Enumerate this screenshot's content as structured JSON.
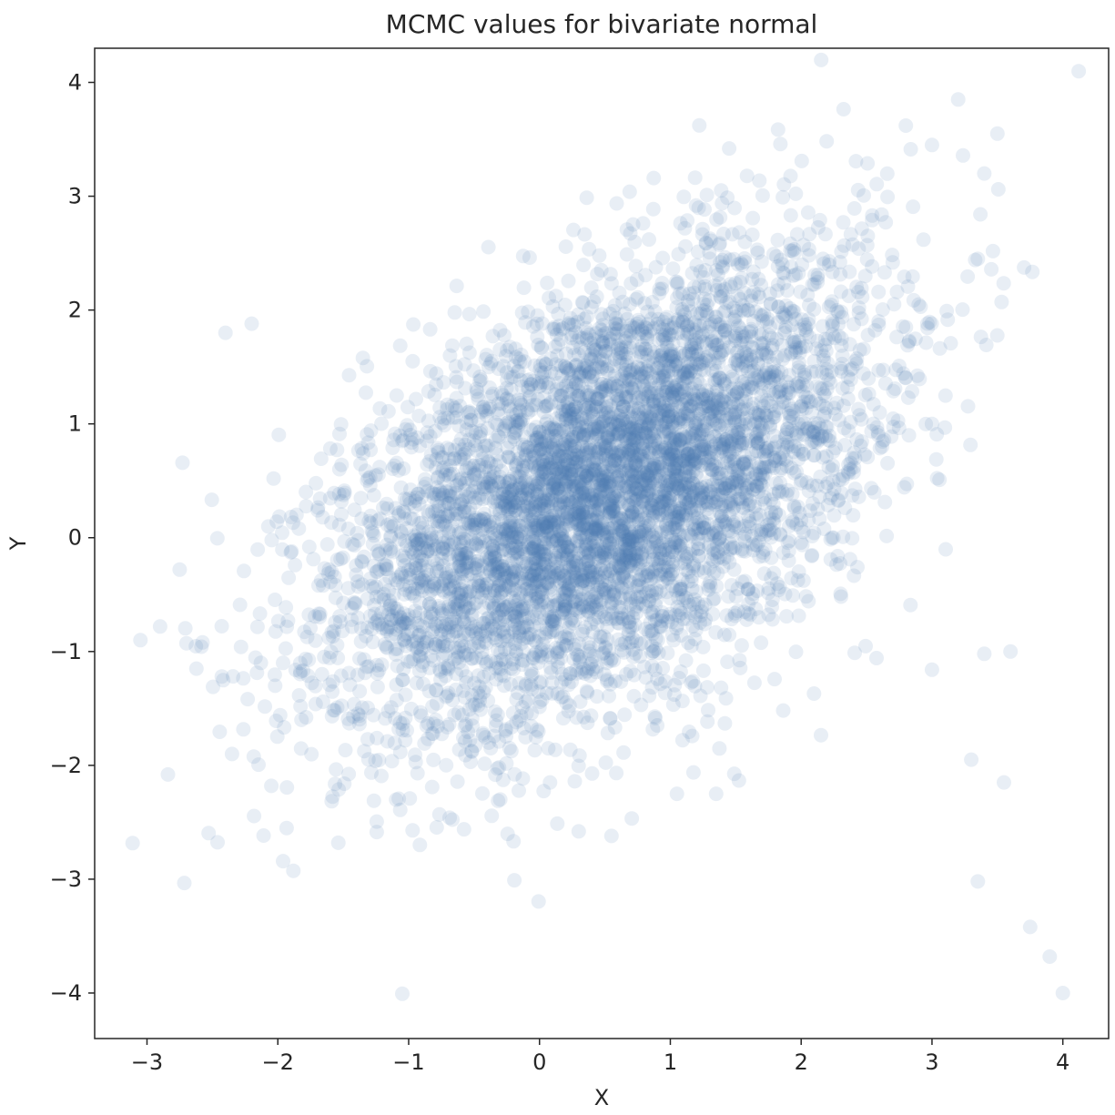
{
  "chart_data": {
    "type": "scatter",
    "title": "MCMC values for bivariate normal",
    "xlabel": "X",
    "ylabel": "Y",
    "xlim": [
      -3.4,
      4.35
    ],
    "ylim": [
      -4.4,
      4.3
    ],
    "x_ticks": [
      -3,
      -2,
      -1,
      0,
      1,
      2,
      3,
      4
    ],
    "y_ticks": [
      -4,
      -3,
      -2,
      -1,
      0,
      1,
      2,
      3,
      4
    ],
    "x_tick_labels": [
      "−3",
      "−2",
      "−1",
      "0",
      "1",
      "2",
      "3",
      "4"
    ],
    "y_tick_labels": [
      "−4",
      "−3",
      "−2",
      "−1",
      "0",
      "1",
      "2",
      "3",
      "4"
    ],
    "grid": false,
    "color": "#4a78b5",
    "point_alpha": 0.13,
    "series": [
      {
        "mean": [
          0.5,
          0.4
        ],
        "std": [
          1.0,
          1.0
        ],
        "correlation": 0.5,
        "n_points": 6000
      }
    ],
    "notable_points": [
      {
        "x": -3.05,
        "y": -0.9
      },
      {
        "x": -2.9,
        "y": -0.78
      },
      {
        "x": -2.75,
        "y": -0.28
      },
      {
        "x": -2.35,
        "y": -1.9
      },
      {
        "x": -2.4,
        "y": 1.8
      },
      {
        "x": -2.2,
        "y": 1.88
      },
      {
        "x": -2.05,
        "y": -2.18
      },
      {
        "x": -1.35,
        "y": 1.58
      },
      {
        "x": -0.3,
        "y": -2.3
      },
      {
        "x": 0.3,
        "y": -2.58
      },
      {
        "x": 0.55,
        "y": -2.62
      },
      {
        "x": 1.05,
        "y": -2.25
      },
      {
        "x": 1.35,
        "y": -2.25
      },
      {
        "x": 1.45,
        "y": 3.42
      },
      {
        "x": 2.8,
        "y": 3.62
      },
      {
        "x": 3.0,
        "y": 3.45
      },
      {
        "x": 3.2,
        "y": 3.85
      },
      {
        "x": 3.5,
        "y": 3.55
      },
      {
        "x": 3.4,
        "y": 3.2
      },
      {
        "x": 3.35,
        "y": 2.45
      },
      {
        "x": 3.0,
        "y": 1.0
      },
      {
        "x": 3.0,
        "y": -1.16
      },
      {
        "x": 3.3,
        "y": -1.95
      },
      {
        "x": 3.55,
        "y": -2.15
      },
      {
        "x": 3.4,
        "y": -1.02
      },
      {
        "x": 3.6,
        "y": -1.0
      },
      {
        "x": 3.35,
        "y": -3.02
      },
      {
        "x": 3.75,
        "y": -3.42
      },
      {
        "x": 3.9,
        "y": -3.68
      },
      {
        "x": 4.0,
        "y": -4.0
      }
    ]
  }
}
